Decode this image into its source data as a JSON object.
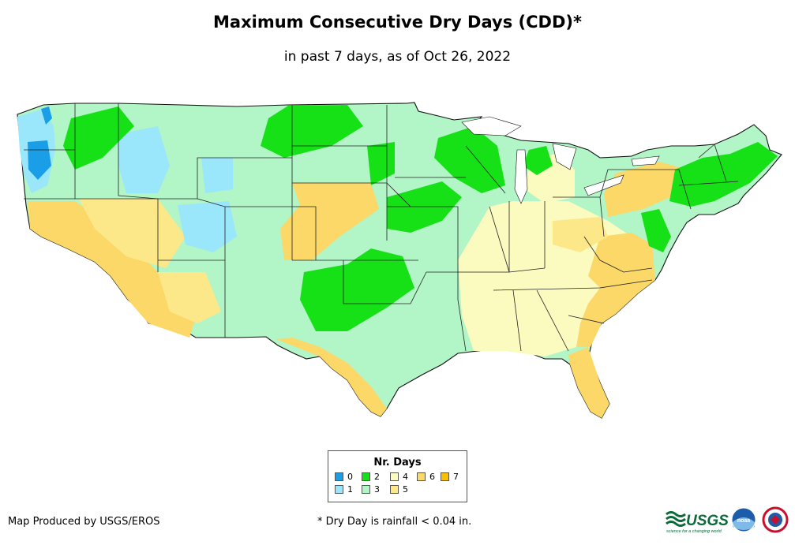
{
  "title": "Maximum Consecutive Dry Days (CDD)*",
  "subtitle": "in past 7 days, as of Oct 26, 2022",
  "legend": {
    "title": "Nr. Days",
    "items": [
      {
        "label": "0",
        "color": "#1a9ee8"
      },
      {
        "label": "1",
        "color": "#9ae6fa"
      },
      {
        "label": "2",
        "color": "#16e016"
      },
      {
        "label": "3",
        "color": "#b2f5c6"
      },
      {
        "label": "4",
        "color": "#fbfbc0"
      },
      {
        "label": "5",
        "color": "#fde889"
      },
      {
        "label": "6",
        "color": "#fbd867"
      },
      {
        "label": "7",
        "color": "#f8c000"
      }
    ]
  },
  "credit": "Map Produced by USGS/EROS",
  "footnote": "* Dry Day is rainfall < 0.04 in.",
  "logos": {
    "usgs": "USGS",
    "usgs_tagline": "science for a changing world",
    "noaa": "noaa"
  }
}
